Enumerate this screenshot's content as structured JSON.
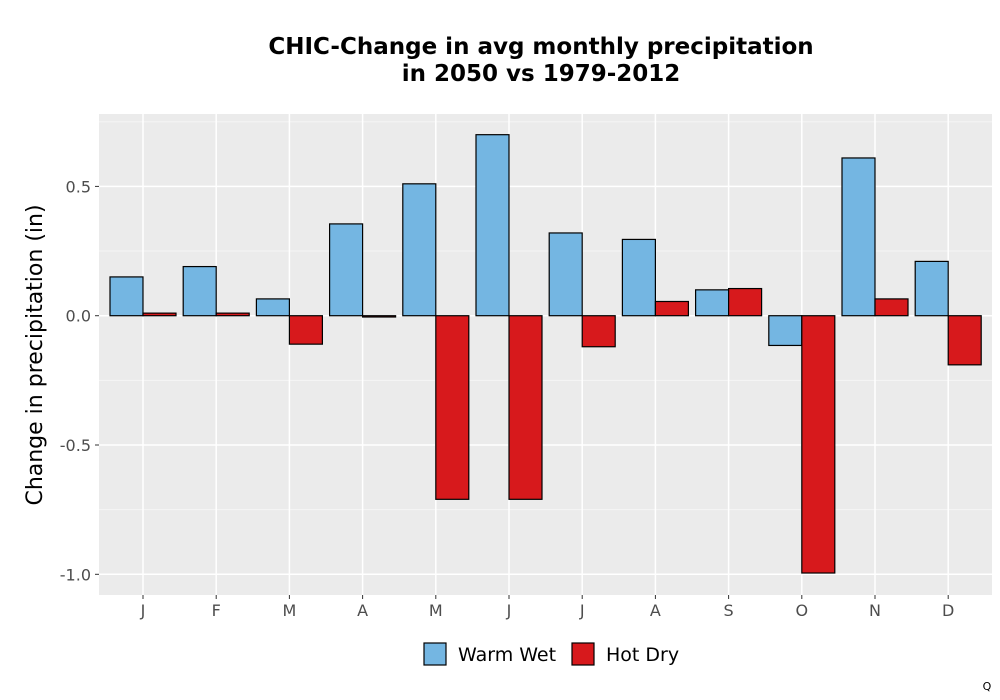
{
  "chart_data": {
    "type": "bar",
    "title_line1": "CHIC-Change in avg monthly precipitation",
    "title_line2": "in 2050 vs 1979-2012",
    "ylabel": "Change in precipitation (in)",
    "xlabel": "",
    "categories": [
      "J",
      "F",
      "M",
      "A",
      "M",
      "J",
      "J",
      "A",
      "S",
      "O",
      "N",
      "D"
    ],
    "series": [
      {
        "name": "Warm Wet",
        "color": "#74b6e2",
        "values": [
          0.15,
          0.19,
          0.065,
          0.355,
          0.51,
          0.7,
          0.32,
          0.295,
          0.1,
          -0.115,
          0.61,
          0.21
        ]
      },
      {
        "name": "Hot Dry",
        "color": "#d7191c",
        "values": [
          0.01,
          0.01,
          -0.11,
          -0.005,
          -0.71,
          -0.71,
          -0.12,
          0.055,
          0.105,
          -0.995,
          0.065,
          -0.19
        ]
      }
    ],
    "ylim": [
      -1.08,
      0.78
    ],
    "yticks": [
      -1.0,
      -0.5,
      0.0,
      0.5
    ],
    "ytick_labels": [
      "-1.0",
      "-0.5",
      "0.0",
      "0.5"
    ],
    "grid": true,
    "legend_position": "bottom"
  },
  "corner_mark": "Q"
}
